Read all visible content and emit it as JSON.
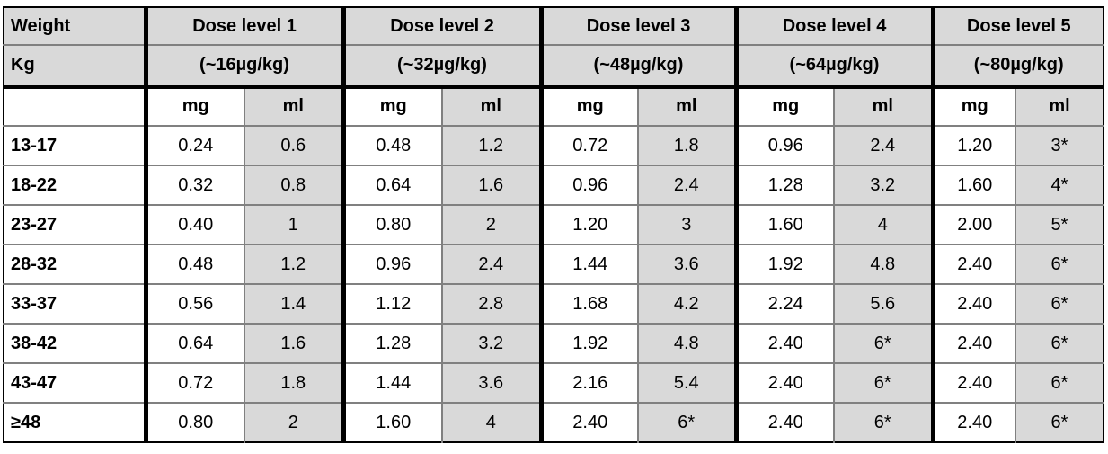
{
  "colors": {
    "header_bg": "#d9d9d9",
    "shaded_cell_bg": "#d9d9d9",
    "thick_border": "#000000",
    "thin_border": "#808080"
  },
  "table": {
    "weight_label": "Weight",
    "weight_unit_label": "Kg",
    "unit_mg": "mg",
    "unit_ml": "ml",
    "dose_levels": [
      {
        "label": "Dose level 1",
        "sub_label": "(~16µg/kg)"
      },
      {
        "label": "Dose level 2",
        "sub_label": "(~32µg/kg)"
      },
      {
        "label": "Dose level 3",
        "sub_label": "(~48µg/kg)"
      },
      {
        "label": "Dose level 4",
        "sub_label": "(~64µg/kg)"
      },
      {
        "label": "Dose level 5",
        "sub_label": "(~80µg/kg)"
      }
    ],
    "rows": [
      {
        "weight": "13-17",
        "values": [
          "0.24",
          "0.6",
          "0.48",
          "1.2",
          "0.72",
          "1.8",
          "0.96",
          "2.4",
          "1.20",
          "3*"
        ]
      },
      {
        "weight": "18-22",
        "values": [
          "0.32",
          "0.8",
          "0.64",
          "1.6",
          "0.96",
          "2.4",
          "1.28",
          "3.2",
          "1.60",
          "4*"
        ]
      },
      {
        "weight": "23-27",
        "values": [
          "0.40",
          "1",
          "0.80",
          "2",
          "1.20",
          "3",
          "1.60",
          "4",
          "2.00",
          "5*"
        ]
      },
      {
        "weight": "28-32",
        "values": [
          "0.48",
          "1.2",
          "0.96",
          "2.4",
          "1.44",
          "3.6",
          "1.92",
          "4.8",
          "2.40",
          "6*"
        ]
      },
      {
        "weight": "33-37",
        "values": [
          "0.56",
          "1.4",
          "1.12",
          "2.8",
          "1.68",
          "4.2",
          "2.24",
          "5.6",
          "2.40",
          "6*"
        ]
      },
      {
        "weight": "38-42",
        "values": [
          "0.64",
          "1.6",
          "1.28",
          "3.2",
          "1.92",
          "4.8",
          "2.40",
          "6*",
          "2.40",
          "6*"
        ]
      },
      {
        "weight": "43-47",
        "values": [
          "0.72",
          "1.8",
          "1.44",
          "3.6",
          "2.16",
          "5.4",
          "2.40",
          "6*",
          "2.40",
          "6*"
        ]
      },
      {
        "weight": "≥48",
        "values": [
          "0.80",
          "2",
          "1.60",
          "4",
          "2.40",
          "6*",
          "2.40",
          "6*",
          "2.40",
          "6*"
        ]
      }
    ]
  }
}
